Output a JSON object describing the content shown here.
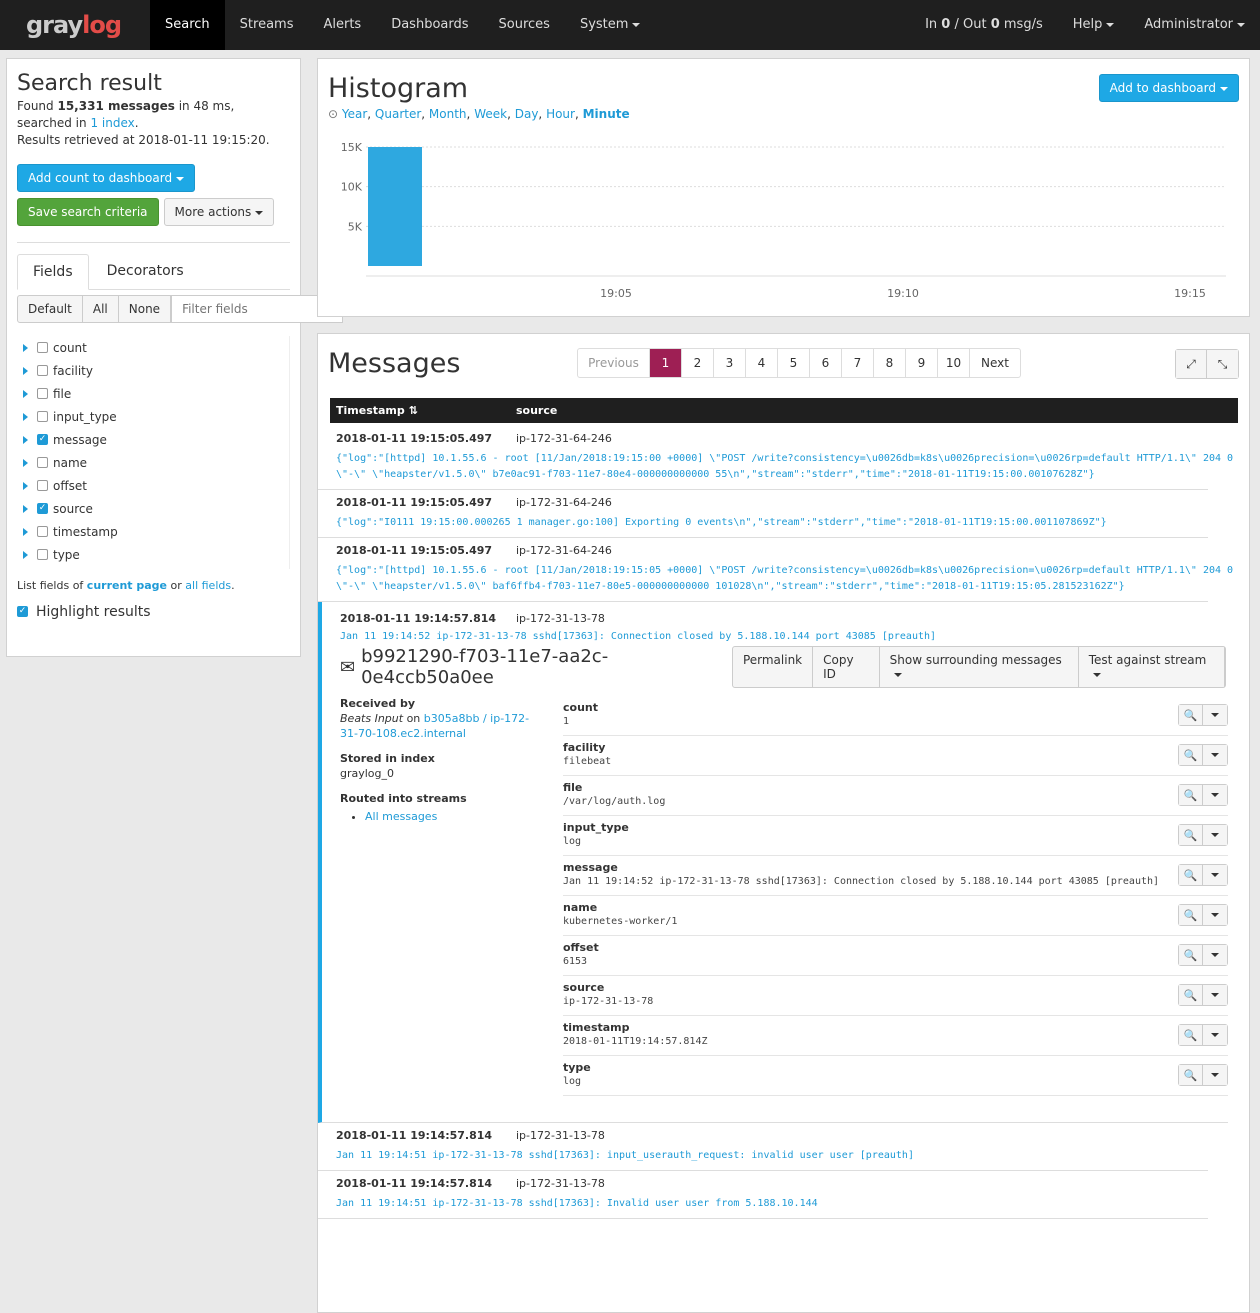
{
  "nav": {
    "logo": "graylog",
    "items": [
      "Search",
      "Streams",
      "Alerts",
      "Dashboards",
      "Sources",
      "System"
    ],
    "throughput": {
      "in_label": "In",
      "in": "0",
      "out_label": "/ Out",
      "out": "0",
      "unit": "msg/s"
    },
    "help": "Help",
    "user": "Administrator"
  },
  "sidebar": {
    "title": "Search result",
    "found_prefix": "Found",
    "found_count": "15,331 messages",
    "found_suffix": "in 48 ms, searched in",
    "index_link": "1 index",
    "retrieved": "Results retrieved at 2018-01-11 19:15:20.",
    "add_count": "Add count to dashboard",
    "save_search": "Save search criteria",
    "more_actions": "More actions",
    "tabs": [
      "Fields",
      "Decorators"
    ],
    "filter_buttons": [
      "Default",
      "All",
      "None"
    ],
    "filter_placeholder": "Filter fields",
    "fields": [
      {
        "name": "count",
        "checked": false
      },
      {
        "name": "facility",
        "checked": false
      },
      {
        "name": "file",
        "checked": false
      },
      {
        "name": "input_type",
        "checked": false
      },
      {
        "name": "message",
        "checked": true
      },
      {
        "name": "name",
        "checked": false
      },
      {
        "name": "offset",
        "checked": false
      },
      {
        "name": "source",
        "checked": true
      },
      {
        "name": "timestamp",
        "checked": false
      },
      {
        "name": "type",
        "checked": false
      }
    ],
    "list_prefix": "List fields of",
    "current_page": "current page",
    "list_or": "or",
    "all_fields": "all fields",
    "highlight": "Highlight results",
    "highlight_checked": true
  },
  "histogram": {
    "title": "Histogram",
    "add_dashboard": "Add to dashboard",
    "resolutions": [
      "Year",
      "Quarter",
      "Month",
      "Week",
      "Day",
      "Hour",
      "Minute"
    ],
    "active_resolution": "Minute",
    "bar_color": "#2ea8e0"
  },
  "chart_data": {
    "type": "bar",
    "x": [
      "19:01"
    ],
    "values": [
      15331
    ],
    "ylim": [
      0,
      15000
    ],
    "yticks": [
      "5K",
      "10K",
      "15K"
    ],
    "xticks": [
      "19:05",
      "19:10",
      "19:15"
    ],
    "grid": true
  },
  "messages": {
    "title": "Messages",
    "pagination": {
      "previous": "Previous",
      "pages": [
        "1",
        "2",
        "3",
        "4",
        "5",
        "6",
        "7",
        "8",
        "9",
        "10"
      ],
      "active": "1",
      "next": "Next"
    },
    "columns": [
      "Timestamp",
      "source"
    ],
    "rows": [
      {
        "timestamp": "2018-01-11 19:15:05.497",
        "source": "ip-172-31-64-246",
        "message": "{\"log\":\"[httpd] 10.1.55.6 - root [11/Jan/2018:19:15:00 +0000] \\\"POST /write?consistency=\\u0026db=k8s\\u0026precision=\\u0026rp=default HTTP/1.1\\\" 204 0 \\\"-\\\" \\\"heapster/v1.5.0\\\" b7e0ac91-f703-11e7-80e4-000000000000 55\\n\",\"stream\":\"stderr\",\"time\":\"2018-01-11T19:15:00.00107628Z\"}"
      },
      {
        "timestamp": "2018-01-11 19:15:05.497",
        "source": "ip-172-31-64-246",
        "message": "{\"log\":\"I0111 19:15:00.000265 1 manager.go:100] Exporting 0 events\\n\",\"stream\":\"stderr\",\"time\":\"2018-01-11T19:15:00.001107869Z\"}"
      },
      {
        "timestamp": "2018-01-11 19:15:05.497",
        "source": "ip-172-31-64-246",
        "message": "{\"log\":\"[httpd] 10.1.55.6 - root [11/Jan/2018:19:15:05 +0000] \\\"POST /write?consistency=\\u0026db=k8s\\u0026precision=\\u0026rp=default HTTP/1.1\\\" 204 0 \\\"-\\\" \\\"heapster/v1.5.0\\\" baf6ffb4-f703-11e7-80e5-000000000000 101028\\n\",\"stream\":\"stderr\",\"time\":\"2018-01-11T19:15:05.281523162Z\"}"
      }
    ],
    "expanded": {
      "timestamp": "2018-01-11 19:14:57.814",
      "source": "ip-172-31-13-78",
      "message": "Jan 11 19:14:52 ip-172-31-13-78 sshd[17363]: Connection closed by 5.188.10.144 port 43085 [preauth]",
      "id": "b9921290-f703-11e7-aa2c-0e4ccb50a0ee",
      "actions": [
        "Permalink",
        "Copy ID",
        "Show surrounding messages",
        "Test against stream"
      ],
      "received_by_label": "Received by",
      "received_input": "Beats Input",
      "received_on": "on",
      "received_node": "b305a8bb / ip-172-31-70-108.ec2.internal",
      "stored_label": "Stored in index",
      "stored_index": "graylog_0",
      "routed_label": "Routed into streams",
      "streams": [
        "All messages"
      ],
      "accent": "#1ea8e5",
      "fields": [
        {
          "name": "count",
          "value": "1"
        },
        {
          "name": "facility",
          "value": "filebeat"
        },
        {
          "name": "file",
          "value": "/var/log/auth.log"
        },
        {
          "name": "input_type",
          "value": "log"
        },
        {
          "name": "message",
          "value": "Jan 11 19:14:52 ip-172-31-13-78 sshd[17363]: Connection closed by 5.188.10.144 port 43085 [preauth]"
        },
        {
          "name": "name",
          "value": "kubernetes-worker/1"
        },
        {
          "name": "offset",
          "value": "6153"
        },
        {
          "name": "source",
          "value": "ip-172-31-13-78"
        },
        {
          "name": "timestamp",
          "value": "2018-01-11T19:14:57.814Z"
        },
        {
          "name": "type",
          "value": "log"
        }
      ]
    },
    "rows_after": [
      {
        "timestamp": "2018-01-11 19:14:57.814",
        "source": "ip-172-31-13-78",
        "message": "Jan 11 19:14:51 ip-172-31-13-78 sshd[17363]: input_userauth_request: invalid user user [preauth]"
      },
      {
        "timestamp": "2018-01-11 19:14:57.814",
        "source": "ip-172-31-13-78",
        "message": "Jan 11 19:14:51 ip-172-31-13-78 sshd[17363]: Invalid user user from 5.188.10.144"
      }
    ]
  }
}
